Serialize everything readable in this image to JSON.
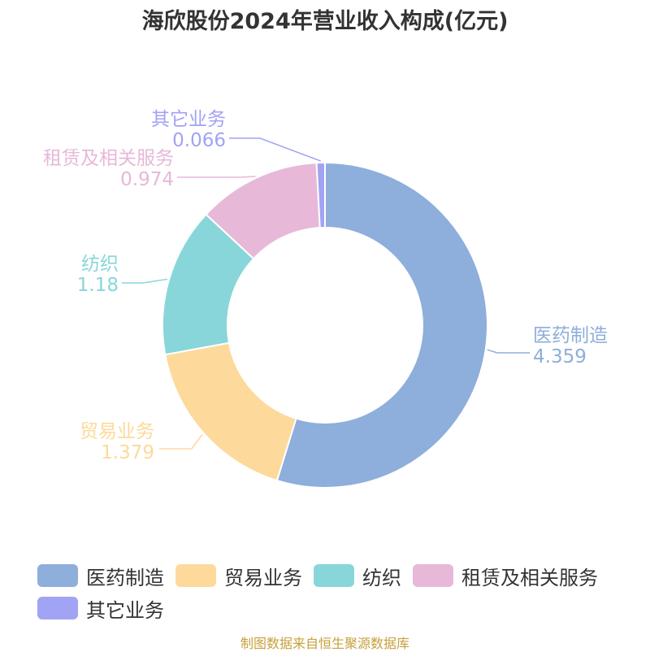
{
  "chart_data": {
    "type": "pie",
    "title": "海欣股份2024年营业收入构成(亿元)",
    "categories": [
      "医药制造",
      "贸易业务",
      "纺织",
      "租赁及相关服务",
      "其它业务"
    ],
    "values": [
      4.359,
      1.379,
      1.18,
      0.974,
      0.066
    ],
    "value_labels": [
      "4.359",
      "1.379",
      "1.18",
      "0.974",
      "0.066"
    ],
    "colors": [
      "#8eaedb",
      "#fdd99b",
      "#88d6d9",
      "#e7b8d8",
      "#a1a3f4"
    ],
    "donut": true,
    "legend_position": "bottom",
    "source": "制图数据来自恒生聚源数据库"
  }
}
